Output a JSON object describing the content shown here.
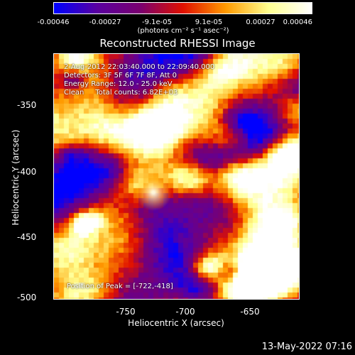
{
  "colorbar": {
    "ticks": [
      "-0.00046",
      "-0.00027",
      "-9.1e-05",
      "9.1e-05",
      "0.00027",
      "0.00046"
    ],
    "units": "(photons cm⁻² s⁻¹ asec⁻²)",
    "colors": [
      "#0000ff",
      "#5a00a0",
      "#7a0070",
      "#e01000",
      "#ff9a00",
      "#ffff90",
      "#ffffff"
    ]
  },
  "title": "Reconstructed RHESSI Image",
  "info": {
    "line1": "2-Aug-2012 22:03:40.000 to 22:09:40.000",
    "line2": "Detectors: 3F 5F 6F 7F 8F, Att 0",
    "line3": "Energy Range: 12.0 - 25.0 keV",
    "line4": "Clean     Total counts: 6.82E+03",
    "peak": "Position of Peak = [-722,-418]"
  },
  "axes": {
    "xlabel": "Heliocentric X (arcsec)",
    "ylabel": "Heliocentric Y (arcsec)",
    "xticks": [
      "-750",
      "-700",
      "-650"
    ],
    "yticks": [
      "-350",
      "-400",
      "-450",
      "-500"
    ]
  },
  "timestamp": "13-May-2022 07:16"
}
